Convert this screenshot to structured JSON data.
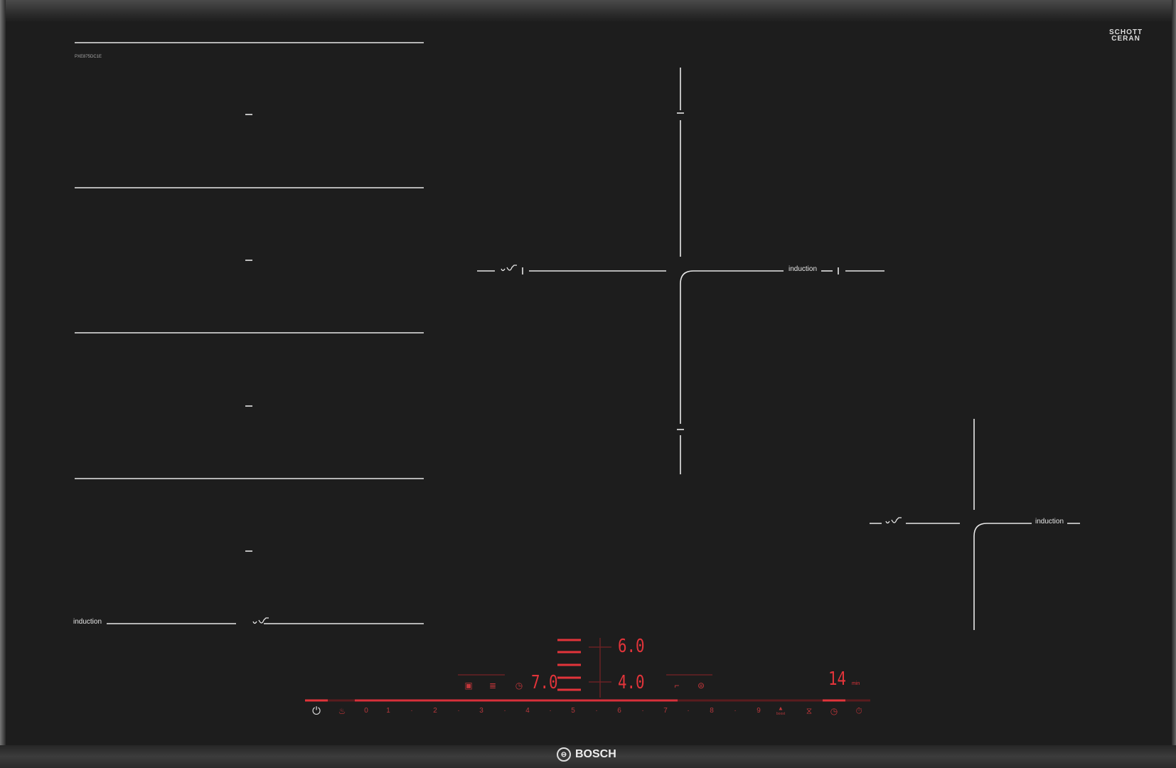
{
  "model": "PXE875DC1E",
  "glass_brand": {
    "line1": "SCHOTT",
    "line2": "CERAN"
  },
  "zone_labels": {
    "induction": "induction"
  },
  "displays": {
    "zone_front_left": "6.0",
    "zone_rear_left": "4.0",
    "timer_value": "7.0",
    "minutes": "14",
    "minutes_unit": "min"
  },
  "control_bar": {
    "labels": [
      "0",
      "1",
      "·",
      "2",
      "·",
      "3",
      "·",
      "4",
      "·",
      "5",
      "·",
      "6",
      "·",
      "7",
      "·",
      "8",
      "·",
      "9"
    ],
    "boost_label": "boost",
    "icons": [
      "power-icon",
      "pan-icon",
      "boost-icon",
      "hourglass-icon",
      "clock-icon",
      "stopwatch-icon"
    ]
  },
  "brand": {
    "name": "BOSCH"
  },
  "colors": {
    "background": "#1d1d1d",
    "line": "#e8e8e8",
    "display_red": "#e2343a",
    "dim_red": "#5a1c1e"
  }
}
